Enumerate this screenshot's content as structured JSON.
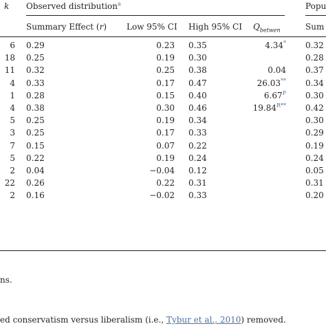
{
  "header": {
    "k": "k",
    "observed": "Observed distribution",
    "observed_note": "a",
    "population": "Popu",
    "summary_effect": "Summary Effect (",
    "summary_r": "r",
    "summary_close": ")",
    "low_ci": "Low 95% CI",
    "high_ci": "High 95% CI",
    "q_main": "Q",
    "q_sub": "betwen",
    "pop_col": "Sum"
  },
  "rows": [
    {
      "k": "6",
      "summary": "0.29",
      "low": "0.23",
      "high": "0.35",
      "q": "4.34",
      "q_note": "*",
      "pop": "0.32"
    },
    {
      "k": "18",
      "summary": "0.25",
      "low": "0.19",
      "high": "0.30",
      "q": "",
      "q_note": "",
      "pop": "0.28"
    },
    {
      "k": "11",
      "summary": "0.32",
      "low": "0.25",
      "high": "0.38",
      "q": "0.04",
      "q_note": "",
      "pop": "0.37"
    },
    {
      "k": "4",
      "summary": "0.33",
      "low": "0.17",
      "high": "0.47",
      "q": "26.03",
      "q_note": "**",
      "pop": "0.34"
    },
    {
      "k": "1",
      "summary": "0.28",
      "low": "0.15",
      "high": "0.40",
      "q": "6.67",
      "q_note": "P",
      "pop": "0.30"
    },
    {
      "k": "4",
      "summary": "0.38",
      "low": "0.30",
      "high": "0.46",
      "q": "19.84",
      "q_note": "R**",
      "pop": "0.42"
    },
    {
      "k": "5",
      "summary": "0.25",
      "low": "0.19",
      "high": "0.34",
      "q": "",
      "q_note": "",
      "pop": "0.30"
    },
    {
      "k": "3",
      "summary": "0.25",
      "low": "0.17",
      "high": "0.33",
      "q": "",
      "q_note": "",
      "pop": "0.29"
    },
    {
      "k": "7",
      "summary": "0.15",
      "low": "0.07",
      "high": "0.22",
      "q": "",
      "q_note": "",
      "pop": "0.19"
    },
    {
      "k": "5",
      "summary": "0.22",
      "low": "0.19",
      "high": "0.24",
      "q": "",
      "q_note": "",
      "pop": "0.24"
    },
    {
      "k": "2",
      "summary": "0.04",
      "low": "−0.04",
      "high": "0.12",
      "q": "",
      "q_note": "",
      "pop": "0.05"
    },
    {
      "k": "22",
      "summary": "0.26",
      "low": "0.22",
      "high": "0.31",
      "q": "",
      "q_note": "",
      "pop": "0.31"
    },
    {
      "k": "2",
      "summary": "0.16",
      "low": "−0.02",
      "high": "0.33",
      "q": "",
      "q_note": "",
      "pop": "0.20"
    }
  ],
  "footnotes": {
    "line1": "ns.",
    "line2_pre": "ed conservatism versus liberalism (i.e., ",
    "line2_link": "Tybur et al., 2010",
    "line2_post": ") removed."
  }
}
